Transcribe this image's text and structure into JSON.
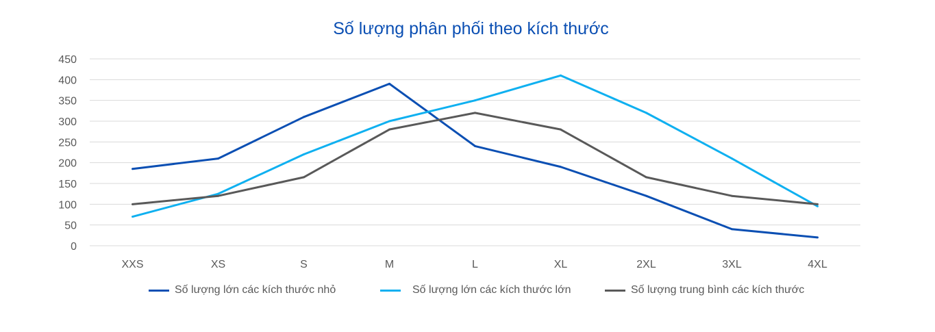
{
  "chart_data": {
    "type": "line",
    "title": "Số lượng phân phối theo kích thước",
    "xlabel": "",
    "ylabel": "",
    "categories": [
      "XXS",
      "XS",
      "S",
      "M",
      "L",
      "XL",
      "2XL",
      "3XL",
      "4XL"
    ],
    "ylim": [
      0,
      450
    ],
    "yticks": [
      0,
      50,
      100,
      150,
      200,
      250,
      300,
      350,
      400,
      450
    ],
    "grid": true,
    "legend_position": "bottom",
    "series": [
      {
        "name": "Số lượng lớn các kích thước nhỏ",
        "color": "#0b4fb3",
        "values": [
          185,
          210,
          310,
          390,
          240,
          190,
          120,
          40,
          20
        ]
      },
      {
        "name": "Số lượng lớn các kích thước lớn",
        "color": "#0fb0f0",
        "values": [
          70,
          125,
          220,
          300,
          350,
          410,
          320,
          210,
          95
        ]
      },
      {
        "name": "Số lượng trung bình các kích thước",
        "color": "#595959",
        "values": [
          100,
          120,
          165,
          280,
          320,
          280,
          165,
          120,
          100
        ]
      }
    ]
  }
}
